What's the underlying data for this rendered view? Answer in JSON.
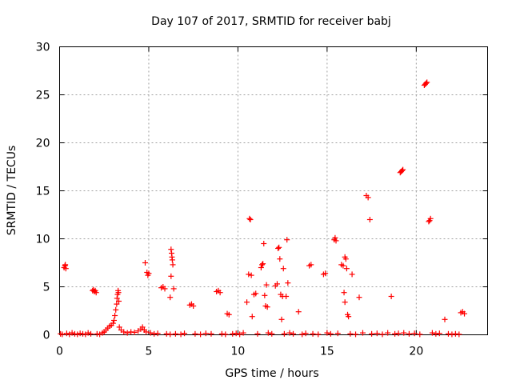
{
  "chart_data": {
    "type": "scatter",
    "title": "Day 107 of 2017, SRMTID for receiver babj",
    "xlabel": "GPS time / hours",
    "ylabel": "SRMTID / TECUs",
    "xlim": [
      0,
      24
    ],
    "ylim": [
      0,
      30
    ],
    "xticks": [
      0,
      5,
      10,
      15,
      20
    ],
    "xtick_labels": [
      "0",
      "5",
      "10",
      "15",
      "20"
    ],
    "yticks": [
      0,
      5,
      10,
      15,
      20,
      25,
      30
    ],
    "ytick_labels": [
      "0",
      "5",
      "10",
      "15",
      "20",
      "25",
      "30"
    ],
    "grid": true,
    "legend": "none",
    "marker": "+",
    "marker_color": "#ff0000",
    "series": [
      {
        "name": "SRMTID",
        "points": [
          [
            0.05,
            0.1
          ],
          [
            0.15,
            0.05
          ],
          [
            0.25,
            7.0
          ],
          [
            0.3,
            7.2
          ],
          [
            0.35,
            6.9
          ],
          [
            0.32,
            7.3
          ],
          [
            0.4,
            0.15
          ],
          [
            0.55,
            0.05
          ],
          [
            0.7,
            0.2
          ],
          [
            0.85,
            0.1
          ],
          [
            1.0,
            0.05
          ],
          [
            1.15,
            0.15
          ],
          [
            1.3,
            0.1
          ],
          [
            1.45,
            0.05
          ],
          [
            1.6,
            0.2
          ],
          [
            1.75,
            0.1
          ],
          [
            1.85,
            4.6
          ],
          [
            1.9,
            4.7
          ],
          [
            1.95,
            4.5
          ],
          [
            2.0,
            4.6
          ],
          [
            2.05,
            4.4
          ],
          [
            2.1,
            0.1
          ],
          [
            2.25,
            0.05
          ],
          [
            2.4,
            0.2
          ],
          [
            2.5,
            0.3
          ],
          [
            2.6,
            0.5
          ],
          [
            2.7,
            0.7
          ],
          [
            2.8,
            0.9
          ],
          [
            2.9,
            1.0
          ],
          [
            3.0,
            1.2
          ],
          [
            3.05,
            1.5
          ],
          [
            3.1,
            2.0
          ],
          [
            3.15,
            2.6
          ],
          [
            3.2,
            3.2
          ],
          [
            3.22,
            3.8
          ],
          [
            3.25,
            4.2
          ],
          [
            3.28,
            4.6
          ],
          [
            3.3,
            4.4
          ],
          [
            3.32,
            3.5
          ],
          [
            3.35,
            0.8
          ],
          [
            3.45,
            0.5
          ],
          [
            3.6,
            0.3
          ],
          [
            3.8,
            0.2
          ],
          [
            4.0,
            0.3
          ],
          [
            4.2,
            0.25
          ],
          [
            4.4,
            0.4
          ],
          [
            4.55,
            0.6
          ],
          [
            4.65,
            0.8
          ],
          [
            4.75,
            0.5
          ],
          [
            4.85,
            0.3
          ],
          [
            4.8,
            7.5
          ],
          [
            4.9,
            6.5
          ],
          [
            4.95,
            6.2
          ],
          [
            5.0,
            6.4
          ],
          [
            5.1,
            0.2
          ],
          [
            5.3,
            0.1
          ],
          [
            5.5,
            0.15
          ],
          [
            5.7,
            4.9
          ],
          [
            5.8,
            5.0
          ],
          [
            5.9,
            4.8
          ],
          [
            6.0,
            0.1
          ],
          [
            6.2,
            0.05
          ],
          [
            6.25,
            8.9
          ],
          [
            6.28,
            8.5
          ],
          [
            6.3,
            8.1
          ],
          [
            6.32,
            7.8
          ],
          [
            6.35,
            7.3
          ],
          [
            6.25,
            6.1
          ],
          [
            6.2,
            3.9
          ],
          [
            6.4,
            4.8
          ],
          [
            6.5,
            0.1
          ],
          [
            6.8,
            0.05
          ],
          [
            7.0,
            0.15
          ],
          [
            7.3,
            3.1
          ],
          [
            7.4,
            3.2
          ],
          [
            7.5,
            3.0
          ],
          [
            7.6,
            0.1
          ],
          [
            7.9,
            0.05
          ],
          [
            8.2,
            0.15
          ],
          [
            8.5,
            0.1
          ],
          [
            8.8,
            4.5
          ],
          [
            8.9,
            4.6
          ],
          [
            9.0,
            4.4
          ],
          [
            9.1,
            0.1
          ],
          [
            9.3,
            0.05
          ],
          [
            9.4,
            2.2
          ],
          [
            9.5,
            2.1
          ],
          [
            9.7,
            0.1
          ],
          [
            9.9,
            0.15
          ],
          [
            10.1,
            0.05
          ],
          [
            10.3,
            0.2
          ],
          [
            10.5,
            3.4
          ],
          [
            10.6,
            6.3
          ],
          [
            10.65,
            12.1
          ],
          [
            10.7,
            12.0
          ],
          [
            10.75,
            6.2
          ],
          [
            10.8,
            1.9
          ],
          [
            10.9,
            4.2
          ],
          [
            11.0,
            4.3
          ],
          [
            11.1,
            0.1
          ],
          [
            11.3,
            7.0
          ],
          [
            11.35,
            7.3
          ],
          [
            11.4,
            7.4
          ],
          [
            11.45,
            9.5
          ],
          [
            11.5,
            4.1
          ],
          [
            11.55,
            3.0
          ],
          [
            11.6,
            5.2
          ],
          [
            11.65,
            2.9
          ],
          [
            11.7,
            0.2
          ],
          [
            11.9,
            0.1
          ],
          [
            12.1,
            5.1
          ],
          [
            12.2,
            5.3
          ],
          [
            12.25,
            9.0
          ],
          [
            12.3,
            9.1
          ],
          [
            12.35,
            7.9
          ],
          [
            12.4,
            4.2
          ],
          [
            12.45,
            1.6
          ],
          [
            12.5,
            4.0
          ],
          [
            12.55,
            6.9
          ],
          [
            12.6,
            0.1
          ],
          [
            12.7,
            4.0
          ],
          [
            12.75,
            9.9
          ],
          [
            12.8,
            5.4
          ],
          [
            12.9,
            0.2
          ],
          [
            13.1,
            0.1
          ],
          [
            13.4,
            2.4
          ],
          [
            13.6,
            0.05
          ],
          [
            13.8,
            0.15
          ],
          [
            14.0,
            7.2
          ],
          [
            14.1,
            7.3
          ],
          [
            14.2,
            0.1
          ],
          [
            14.5,
            0.05
          ],
          [
            14.8,
            6.3
          ],
          [
            14.9,
            6.4
          ],
          [
            15.0,
            0.2
          ],
          [
            15.2,
            0.1
          ],
          [
            15.4,
            9.9
          ],
          [
            15.45,
            10.1
          ],
          [
            15.5,
            9.8
          ],
          [
            15.6,
            0.15
          ],
          [
            15.8,
            7.3
          ],
          [
            15.9,
            7.2
          ],
          [
            15.95,
            4.4
          ],
          [
            16.0,
            8.1
          ],
          [
            16.05,
            7.9
          ],
          [
            16.1,
            6.9
          ],
          [
            16.0,
            3.4
          ],
          [
            16.15,
            2.1
          ],
          [
            16.2,
            1.9
          ],
          [
            16.3,
            0.1
          ],
          [
            16.4,
            6.3
          ],
          [
            16.6,
            0.05
          ],
          [
            16.8,
            3.9
          ],
          [
            17.0,
            0.2
          ],
          [
            17.2,
            14.5
          ],
          [
            17.3,
            14.3
          ],
          [
            17.4,
            12.0
          ],
          [
            17.5,
            0.1
          ],
          [
            17.8,
            0.15
          ],
          [
            18.1,
            0.05
          ],
          [
            18.4,
            0.2
          ],
          [
            18.6,
            4.0
          ],
          [
            18.8,
            0.1
          ],
          [
            19.0,
            0.15
          ],
          [
            19.1,
            16.9
          ],
          [
            19.15,
            17.0
          ],
          [
            19.2,
            17.1
          ],
          [
            19.25,
            17.2
          ],
          [
            19.3,
            0.2
          ],
          [
            19.6,
            0.1
          ],
          [
            19.9,
            0.15
          ],
          [
            20.2,
            0.05
          ],
          [
            20.45,
            26.0
          ],
          [
            20.5,
            26.1
          ],
          [
            20.55,
            26.2
          ],
          [
            20.6,
            26.3
          ],
          [
            20.7,
            11.8
          ],
          [
            20.75,
            11.9
          ],
          [
            20.8,
            12.1
          ],
          [
            20.9,
            0.2
          ],
          [
            21.1,
            0.1
          ],
          [
            21.3,
            0.15
          ],
          [
            21.6,
            1.6
          ],
          [
            21.8,
            0.1
          ],
          [
            22.0,
            0.05
          ],
          [
            22.2,
            0.1
          ],
          [
            22.4,
            0.05
          ],
          [
            22.5,
            2.3
          ],
          [
            22.6,
            2.4
          ],
          [
            22.7,
            2.2
          ]
        ]
      }
    ]
  }
}
